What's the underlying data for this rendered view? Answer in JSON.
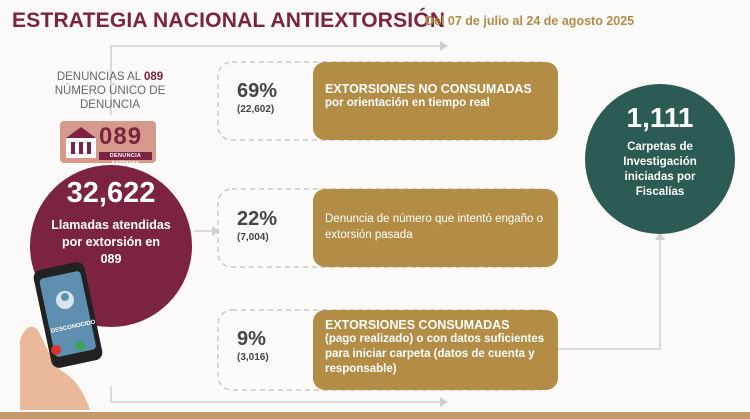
{
  "header": {
    "title": "ESTRATEGIA NACIONAL ANTIEXTORSIÓN",
    "subtitle": "Del 07 de julio al 24 de agosto 2025"
  },
  "left_panel": {
    "caption_prefix": "DENUNCIAS AL ",
    "caption_number": "089",
    "caption_line2": "NÚMERO ÚNICO DE",
    "caption_line3": "DENUNCIA",
    "badge_number": "089",
    "badge_strip": "DENUNCIA ANÓNIMA",
    "total_calls": "32,622",
    "total_calls_label": "Llamadas atendidas por extorsión en 089",
    "phone_label": "DESCONOCIDO"
  },
  "outcomes": [
    {
      "percent": "69%",
      "count": "(22,602)",
      "heading": "EXTORSIONES NO CONSUMADAS",
      "text": "por orientación en tiempo real"
    },
    {
      "percent": "22%",
      "count": "(7,004)",
      "heading": "",
      "text": "Denuncia de número que intentó engaño o extorsión pasada"
    },
    {
      "percent": "9%",
      "count": "(3,016)",
      "heading": "EXTORSIONES CONSUMADAS",
      "text": "(pago realizado) o con datos suficientes para iniciar carpeta (datos de cuenta y responsable)"
    }
  ],
  "right_panel": {
    "total": "1,111",
    "label": "Carpetas de Investigación iniciadas por Fiscalías"
  },
  "colors": {
    "maroon": "#7b2340",
    "gold": "#b38d45",
    "teal": "#2b5b52"
  }
}
